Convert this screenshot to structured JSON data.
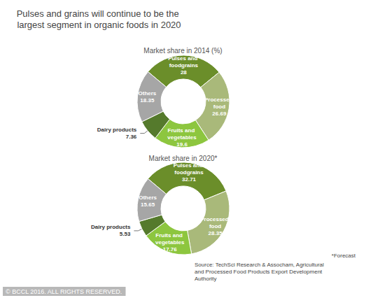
{
  "title": "Pulses and grains will continue to be the largest segment in organic foods in 2020",
  "footnote": "*Forecast",
  "source": "Source: TechSci Research & Assocham, Agricultural and Processed Food Products Export Development Authority",
  "copyright": "© BCCL 2016. ALL RIGHTS RESERVED.",
  "chart_data": [
    {
      "type": "pie",
      "title": "Market share in 2014 (%)",
      "categories": [
        "Pulses and foodgrains",
        "Processed food",
        "Fruits and vegetables",
        "Dairy products",
        "Others"
      ],
      "values": [
        28,
        26.69,
        19.6,
        7.36,
        18.35
      ],
      "colors": [
        "#6b8e2a",
        "#a9b97a",
        "#8dc63f",
        "#557a2c",
        "#a6a6a6"
      ],
      "data_labels": true
    },
    {
      "type": "pie",
      "title": "Market share in 2020*",
      "categories": [
        "Pulses and foodgrains",
        "Processed food",
        "Fruits and vegetables",
        "Dairy products",
        "Others"
      ],
      "values": [
        32.71,
        28.35,
        17.76,
        5.53,
        15.65
      ],
      "colors": [
        "#6b8e2a",
        "#a9b97a",
        "#8dc63f",
        "#557a2c",
        "#a6a6a6"
      ],
      "data_labels": true
    }
  ]
}
